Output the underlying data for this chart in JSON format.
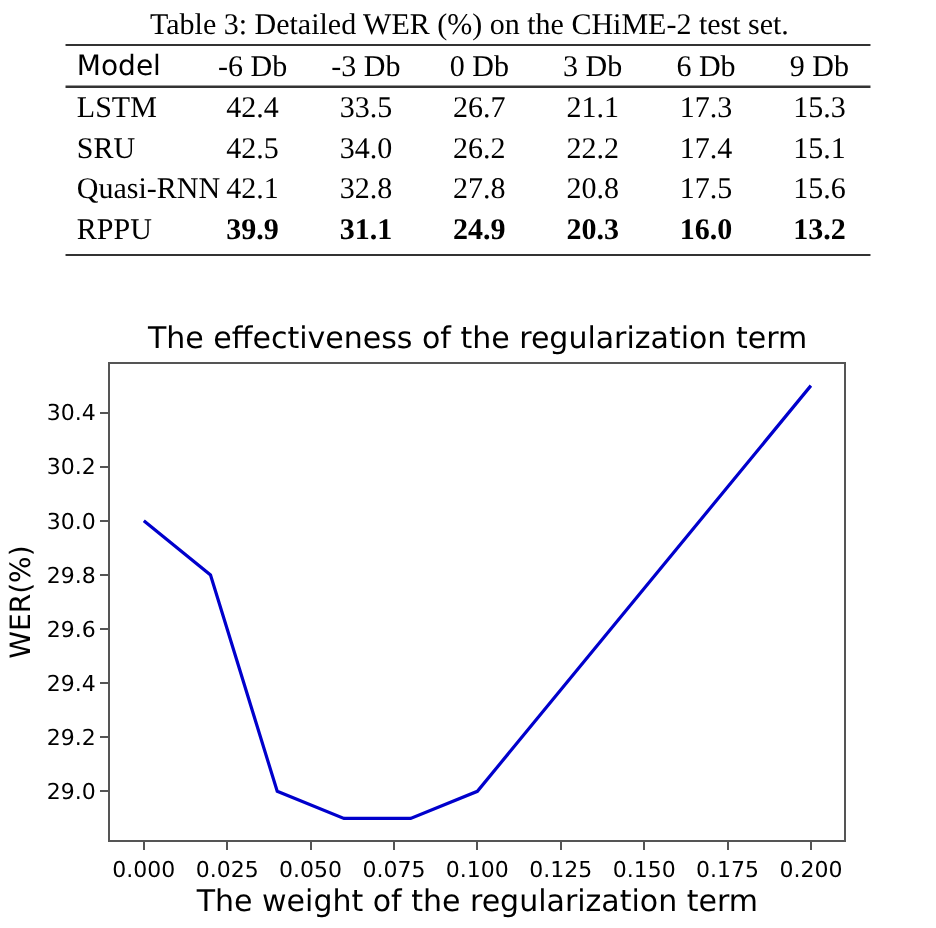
{
  "chart_data": [
    {
      "type": "heatmap",
      "title": "Table 3: Detailed WER (%) on the CHiME-2 test set.",
      "ylabel": "Model",
      "categories": [
        "-6 Db",
        "-3 Db",
        "0 Db",
        "3 Db",
        "6 Db",
        "9 Db"
      ],
      "y_categories": [
        "LSTM",
        "SRU",
        "Quasi-RNN",
        "RPPU"
      ],
      "cells": [
        [
          42.4,
          33.5,
          26.7,
          21.1,
          17.3,
          15.3
        ],
        [
          42.5,
          34.0,
          26.2,
          22.2,
          17.4,
          15.1
        ],
        [
          42.1,
          32.8,
          27.8,
          20.8,
          17.5,
          15.6
        ],
        [
          39.9,
          31.1,
          24.9,
          20.3,
          16.0,
          13.2
        ]
      ],
      "data_labels": true,
      "cell_labels": [
        [
          "42.4",
          "33.5",
          "26.7",
          "21.1",
          "17.3",
          "15.3"
        ],
        [
          "42.5",
          "34.0",
          "26.2",
          "22.2",
          "17.4",
          "15.1"
        ],
        [
          "42.1",
          "32.8",
          "27.8",
          "20.8",
          "17.5",
          "15.6"
        ],
        [
          "39.9",
          "31.1",
          "24.9",
          "20.3",
          "16.0",
          "13.2"
        ]
      ]
    },
    {
      "type": "line",
      "title": "The effectiveness of the regularization term",
      "xlabel": "The weight of the regularization term",
      "ylabel": "WER(%)",
      "x": [
        0.0,
        0.02,
        0.04,
        0.06,
        0.08,
        0.1,
        0.2
      ],
      "series": [
        {
          "color": "#0000cc",
          "values": [
            30.0,
            29.8,
            29.0,
            28.9,
            28.9,
            29.0,
            30.5
          ]
        }
      ],
      "xlim": [
        -0.01,
        0.21
      ],
      "ylim": [
        28.82,
        30.58
      ],
      "xticks": [
        {
          "value": 0,
          "label": "0.000"
        },
        {
          "value": 0.025,
          "label": "0.025"
        },
        {
          "value": 0.05,
          "label": "0.050"
        },
        {
          "value": 0.075,
          "label": "0.075"
        },
        {
          "value": 0.1,
          "label": "0.100"
        },
        {
          "value": 0.125,
          "label": "0.125"
        },
        {
          "value": 0.15,
          "label": "0.150"
        },
        {
          "value": 0.175,
          "label": "0.175"
        },
        {
          "value": 0.2,
          "label": "0.200"
        }
      ],
      "yticks": [
        {
          "value": 29,
          "label": "29.0"
        },
        {
          "value": 29.2,
          "label": "29.2"
        },
        {
          "value": 29.4,
          "label": "29.4"
        },
        {
          "value": 29.6,
          "label": "29.6"
        },
        {
          "value": 29.8,
          "label": "29.8"
        },
        {
          "value": 30,
          "label": "30.0"
        },
        {
          "value": 30.2,
          "label": "30.2"
        },
        {
          "value": 30.4,
          "label": "30.4"
        }
      ],
      "marker": "none",
      "line_style": "solid"
    }
  ]
}
